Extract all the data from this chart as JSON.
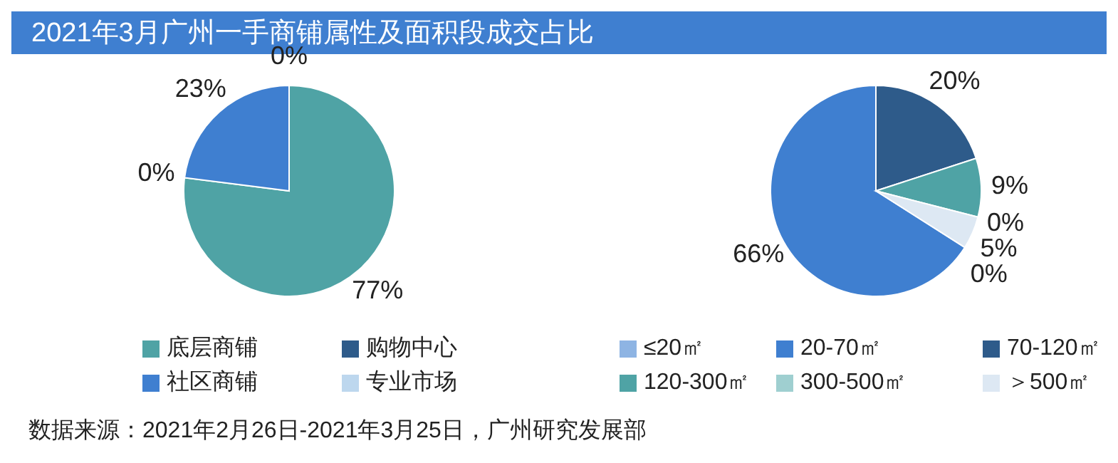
{
  "chart_data": [
    {
      "type": "pie",
      "title": "2021年3月广州一手商铺属性及面积段成交占比",
      "categories": [
        "底层商铺",
        "购物中心",
        "社区商铺",
        "专业市场"
      ],
      "values": [
        77,
        0,
        23,
        0
      ],
      "value_labels": [
        "77%",
        "0%",
        "23%",
        "0%"
      ],
      "colors": [
        "#4fa3a5",
        "#2e5b8a",
        "#3f7fd0",
        "#bdd7ee"
      ],
      "legend": "bottom",
      "annotations": [
        "数据来源：2021年2月26日-2021年3月25日，广州研究发展部"
      ]
    },
    {
      "type": "pie",
      "categories": [
        "≤20㎡",
        "20-70㎡",
        "70-120㎡",
        "120-300㎡",
        "300-500㎡",
        "＞500㎡"
      ],
      "values": [
        0,
        66,
        20,
        9,
        0,
        5
      ],
      "value_labels": [
        "0%",
        "66%",
        "20%",
        "9%",
        "0%",
        "5%"
      ],
      "colors": [
        "#8eb4e3",
        "#3f7fd0",
        "#2e5b8a",
        "#4fa3a5",
        "#9fcfd0",
        "#dde8f3"
      ],
      "legend": "bottom"
    }
  ]
}
